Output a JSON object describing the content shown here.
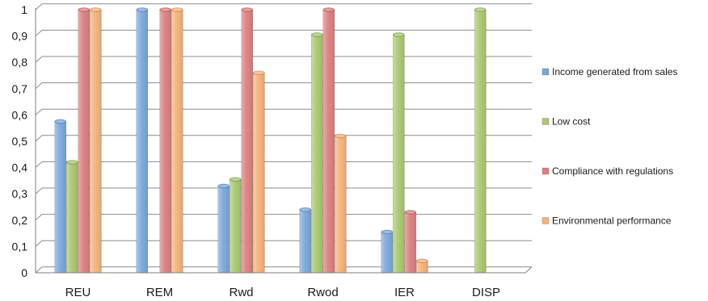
{
  "chart_data": {
    "type": "bar",
    "categories": [
      "REU",
      "REM",
      "Rwd",
      "Rwod",
      "IER",
      "DISP"
    ],
    "series": [
      {
        "name": "Income generated from sales",
        "values": [
          0.575,
          1.0,
          0.33,
          0.24,
          0.155,
          0
        ],
        "color": "#7ba7dc"
      },
      {
        "name": "Low cost",
        "values": [
          0.42,
          0,
          0.355,
          0.905,
          0.905,
          1.0
        ],
        "color": "#a9c86f"
      },
      {
        "name": "Compliance with regulations",
        "values": [
          1.0,
          1.0,
          1.0,
          1.0,
          0.23,
          0
        ],
        "color": "#dc7f7f"
      },
      {
        "name": "Environmental performance",
        "values": [
          1.0,
          1.0,
          0.76,
          0.52,
          0.045,
          0
        ],
        "color": "#f6b27a"
      }
    ],
    "yticks": [
      "0",
      "0,1",
      "0,2",
      "0,3",
      "0,4",
      "0,5",
      "0,6",
      "0,7",
      "0,8",
      "0,9",
      "1"
    ],
    "ylim": [
      0,
      1
    ],
    "grid": true,
    "legend_position": "right",
    "title": "",
    "xlabel": "",
    "ylabel": ""
  }
}
